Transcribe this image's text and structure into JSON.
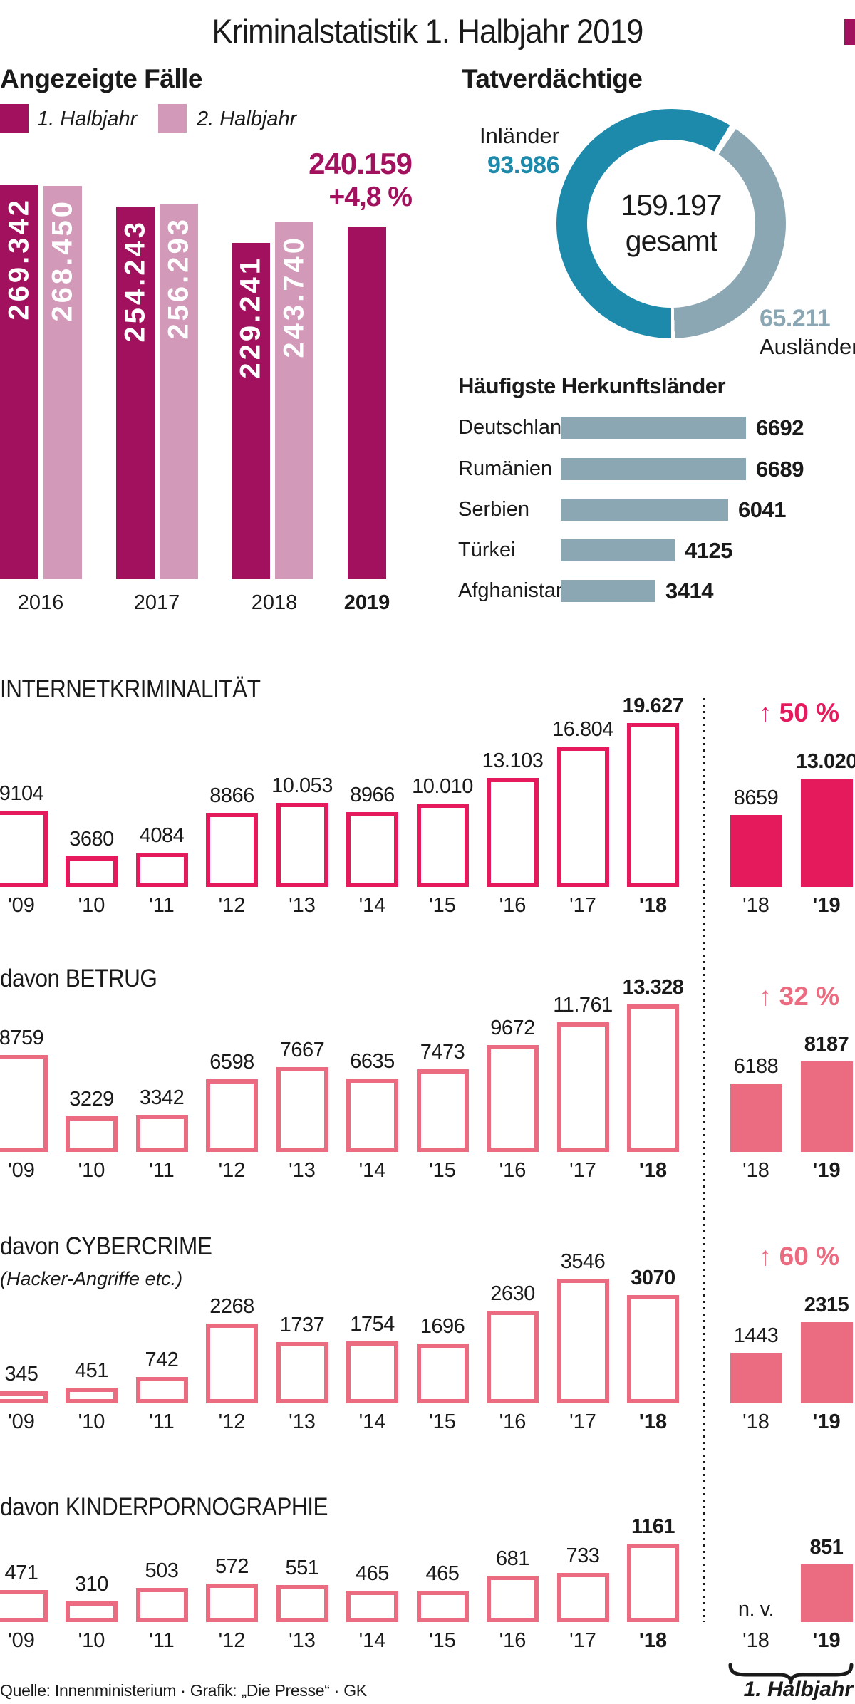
{
  "title": "Kriminalstatistik 1. Halbjahr 2019",
  "footer": {
    "source": "Quelle: Innenministerium · Grafik: „Die Presse“ · GK",
    "bracket_label": "1. Halbjahr"
  },
  "colors": {
    "dark_magenta": "#a1115e",
    "light_pink": "#d29ab8",
    "teal": "#1d8aac",
    "gray_blue": "#8ca7b4",
    "bright_pink": "#e41a5c",
    "rose": "#eb6b80",
    "text": "#1a1a1a"
  },
  "chart_data": [
    {
      "id": "angezeigte-faelle",
      "type": "bar",
      "title": "Angezeigte Fälle",
      "legend": [
        "1. Halbjahr",
        "2. Halbjahr"
      ],
      "categories": [
        "2016",
        "2017",
        "2018",
        "2019"
      ],
      "series": [
        {
          "name": "1. Halbjahr",
          "color_key": "dark_magenta",
          "values": [
            269342,
            254243,
            229241,
            240159
          ],
          "labels": [
            "269.342",
            "254.243",
            "229.241",
            ""
          ]
        },
        {
          "name": "2. Halbjahr",
          "color_key": "light_pink",
          "values": [
            268450,
            256293,
            243740,
            null
          ],
          "labels": [
            "268.450",
            "256.293",
            "243.740",
            null
          ]
        }
      ],
      "annotation": {
        "value": "240.159",
        "change": "+4,8 %"
      },
      "ylim": [
        0,
        280000
      ]
    },
    {
      "id": "tatverdaechtige",
      "type": "donut",
      "title": "Tatverdächtige",
      "slices": [
        {
          "label": "Inländer",
          "value": 93986,
          "display": "93.986",
          "color_key": "teal"
        },
        {
          "label": "Ausländer",
          "value": 65211,
          "display": "65.211",
          "color_key": "gray_blue"
        }
      ],
      "center": {
        "value": "159.197",
        "label": "gesamt"
      }
    },
    {
      "id": "herkunftslaender",
      "type": "bar_horizontal",
      "title": "Häufigste Herkunftsländer",
      "categories": [
        "Deutschland",
        "Rumänien",
        "Serbien",
        "Türkei",
        "Afghanistan"
      ],
      "values": [
        6692,
        6689,
        6041,
        4125,
        3414
      ],
      "labels": [
        "6692",
        "6689",
        "6041",
        "4125",
        "3414"
      ],
      "color_key": "gray_blue"
    },
    {
      "id": "internetkriminalitaet",
      "type": "bar_outline",
      "title": "INTERNETKRIMINALITÄT",
      "subtitle": "",
      "color_key": "bright_pink",
      "categories": [
        "'09",
        "'10",
        "'11",
        "'12",
        "'13",
        "'14",
        "'15",
        "'16",
        "'17",
        "'18"
      ],
      "values": [
        9104,
        3680,
        4084,
        8866,
        10053,
        8966,
        10010,
        13103,
        16804,
        19627
      ],
      "labels": [
        "9104",
        "3680",
        "4084",
        "8866",
        "10.053",
        "8966",
        "10.010",
        "13.103",
        "16.804",
        "19.627"
      ],
      "comparison": {
        "categories": [
          "'18",
          "'19"
        ],
        "values": [
          8659,
          13020
        ],
        "labels": [
          "8659",
          "13.020"
        ],
        "change": "↑ 50 %"
      }
    },
    {
      "id": "betrug",
      "type": "bar_outline",
      "title": "davon BETRUG",
      "subtitle": "",
      "color_key": "rose",
      "categories": [
        "'09",
        "'10",
        "'11",
        "'12",
        "'13",
        "'14",
        "'15",
        "'16",
        "'17",
        "'18"
      ],
      "values": [
        8759,
        3229,
        3342,
        6598,
        7667,
        6635,
        7473,
        9672,
        11761,
        13328
      ],
      "labels": [
        "8759",
        "3229",
        "3342",
        "6598",
        "7667",
        "6635",
        "7473",
        "9672",
        "11.761",
        "13.328"
      ],
      "comparison": {
        "categories": [
          "'18",
          "'19"
        ],
        "values": [
          6188,
          8187
        ],
        "labels": [
          "6188",
          "8187"
        ],
        "change": "↑ 32 %"
      }
    },
    {
      "id": "cybercrime",
      "type": "bar_outline",
      "title": "davon CYBERCRIME",
      "subtitle": "(Hacker-Angriffe etc.)",
      "color_key": "rose",
      "categories": [
        "'09",
        "'10",
        "'11",
        "'12",
        "'13",
        "'14",
        "'15",
        "'16",
        "'17",
        "'18"
      ],
      "values": [
        345,
        451,
        742,
        2268,
        1737,
        1754,
        1696,
        2630,
        3546,
        3070
      ],
      "labels": [
        "345",
        "451",
        "742",
        "2268",
        "1737",
        "1754",
        "1696",
        "2630",
        "3546",
        "3070"
      ],
      "comparison": {
        "categories": [
          "'18",
          "'19"
        ],
        "values": [
          1443,
          2315
        ],
        "labels": [
          "1443",
          "2315"
        ],
        "change": "↑ 60 %"
      }
    },
    {
      "id": "kinderpornographie",
      "type": "bar_outline",
      "title": "davon KINDERPORNOGRAPHIE",
      "subtitle": "",
      "color_key": "rose",
      "categories": [
        "'09",
        "'10",
        "'11",
        "'12",
        "'13",
        "'14",
        "'15",
        "'16",
        "'17",
        "'18"
      ],
      "values": [
        471,
        310,
        503,
        572,
        551,
        465,
        465,
        681,
        733,
        1161
      ],
      "labels": [
        "471",
        "310",
        "503",
        "572",
        "551",
        "465",
        "465",
        "681",
        "733",
        "1161"
      ],
      "comparison": {
        "categories": [
          "'18",
          "'19"
        ],
        "values": [
          null,
          851
        ],
        "labels": [
          "n. v.",
          "851"
        ],
        "change": null
      }
    }
  ]
}
